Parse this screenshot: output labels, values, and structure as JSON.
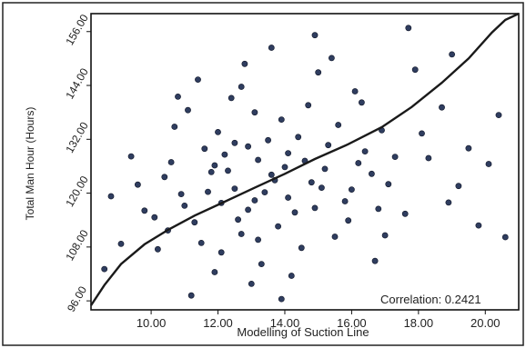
{
  "chart_data": {
    "type": "scatter",
    "title": "",
    "xlabel": "Modelling of Suction Line",
    "ylabel": "Total Man Hour (Hours)",
    "xlim": [
      8.2,
      21.0
    ],
    "ylim": [
      94.0,
      160.0
    ],
    "xticks": [
      "10.00",
      "12.00",
      "14.00",
      "16.00",
      "18.00",
      "20.00"
    ],
    "yticks": [
      "96.00",
      "108.00",
      "120.00",
      "132.00",
      "144.00",
      "156.00"
    ],
    "annotation": "Correlation: 0.2421",
    "grid": false,
    "legend": "none",
    "marker_color": "#2f3d5f",
    "line_color": "#1a1a1a",
    "series": [
      {
        "type": "scatter",
        "points": [
          [
            12.5,
            121.0
          ],
          [
            13.1,
            118.4
          ],
          [
            11.8,
            124.7
          ],
          [
            14.6,
            127.2
          ],
          [
            12.9,
            116.3
          ],
          [
            13.7,
            122.9
          ],
          [
            10.9,
            119.8
          ],
          [
            15.2,
            125.4
          ],
          [
            12.2,
            128.6
          ],
          [
            14.1,
            119.0
          ],
          [
            11.3,
            113.5
          ],
          [
            16.4,
            129.3
          ],
          [
            13.5,
            131.8
          ],
          [
            12.7,
            110.9
          ],
          [
            14.9,
            116.7
          ],
          [
            10.4,
            123.6
          ],
          [
            17.1,
            122.0
          ],
          [
            13.9,
            136.4
          ],
          [
            11.6,
            129.9
          ],
          [
            15.8,
            118.2
          ],
          [
            12.1,
            106.8
          ],
          [
            14.4,
            132.5
          ],
          [
            9.8,
            116.1
          ],
          [
            16.9,
            134.0
          ],
          [
            13.3,
            104.2
          ],
          [
            11.1,
            138.5
          ],
          [
            15.5,
            110.3
          ],
          [
            18.3,
            127.8
          ],
          [
            12.4,
            141.2
          ],
          [
            10.2,
            107.5
          ],
          [
            14.7,
            139.6
          ],
          [
            17.6,
            115.4
          ],
          [
            13.0,
            99.8
          ],
          [
            9.4,
            128.2
          ],
          [
            16.1,
            142.7
          ],
          [
            11.9,
            102.4
          ],
          [
            19.2,
            121.6
          ],
          [
            15.0,
            146.9
          ],
          [
            8.8,
            119.3
          ],
          [
            18.7,
            139.1
          ],
          [
            12.8,
            148.8
          ],
          [
            10.7,
            134.8
          ],
          [
            20.1,
            126.5
          ],
          [
            14.2,
            101.6
          ],
          [
            16.7,
            104.9
          ],
          [
            11.4,
            145.3
          ],
          [
            17.9,
            147.5
          ],
          [
            9.1,
            108.7
          ],
          [
            13.6,
            152.4
          ],
          [
            19.8,
            112.8
          ],
          [
            15.6,
            135.2
          ],
          [
            12.0,
            133.6
          ],
          [
            14.0,
            125.8
          ],
          [
            13.2,
            127.4
          ],
          [
            11.0,
            117.2
          ],
          [
            16.0,
            120.8
          ],
          [
            12.6,
            114.1
          ],
          [
            14.8,
            122.4
          ],
          [
            13.8,
            112.6
          ],
          [
            10.6,
            126.9
          ],
          [
            15.3,
            130.7
          ],
          [
            11.7,
            120.3
          ],
          [
            17.3,
            128.1
          ],
          [
            12.3,
            125.0
          ],
          [
            14.3,
            115.7
          ],
          [
            13.4,
            120.2
          ],
          [
            16.6,
            124.3
          ],
          [
            10.1,
            114.6
          ],
          [
            15.9,
            113.9
          ],
          [
            12.9,
            130.4
          ],
          [
            18.1,
            133.3
          ],
          [
            11.5,
            108.9
          ],
          [
            14.5,
            107.8
          ],
          [
            19.5,
            130.0
          ],
          [
            13.1,
            138.0
          ],
          [
            20.4,
            137.4
          ],
          [
            9.6,
            121.9
          ],
          [
            17.0,
            110.6
          ],
          [
            16.3,
            140.2
          ],
          [
            12.7,
            143.7
          ],
          [
            10.8,
            141.5
          ],
          [
            18.9,
            117.9
          ],
          [
            15.4,
            150.1
          ],
          [
            11.2,
            97.2
          ],
          [
            13.9,
            96.4
          ],
          [
            19.0,
            150.9
          ],
          [
            17.7,
            156.8
          ],
          [
            14.9,
            155.2
          ],
          [
            8.6,
            103.1
          ],
          [
            20.6,
            110.2
          ],
          [
            16.8,
            116.5
          ],
          [
            12.1,
            117.8
          ],
          [
            13.6,
            124.1
          ],
          [
            11.9,
            126.2
          ],
          [
            14.1,
            128.9
          ],
          [
            15.1,
            121.2
          ],
          [
            12.5,
            131.2
          ],
          [
            13.2,
            109.6
          ],
          [
            10.5,
            111.7
          ],
          [
            16.2,
            126.7
          ]
        ]
      },
      {
        "type": "line",
        "name": "",
        "x": [
          8.2,
          8.6,
          9.1,
          9.8,
          10.5,
          11.3,
          12.2,
          13.1,
          14.0,
          14.9,
          15.9,
          16.9,
          17.8,
          18.7,
          19.5,
          20.2,
          20.6,
          21.0
        ],
        "y": [
          95.0,
          99.5,
          104.2,
          108.6,
          111.8,
          115.0,
          118.1,
          121.2,
          124.3,
          127.6,
          130.9,
          134.7,
          139.2,
          144.6,
          150.0,
          155.8,
          158.6,
          160.0
        ]
      }
    ]
  }
}
